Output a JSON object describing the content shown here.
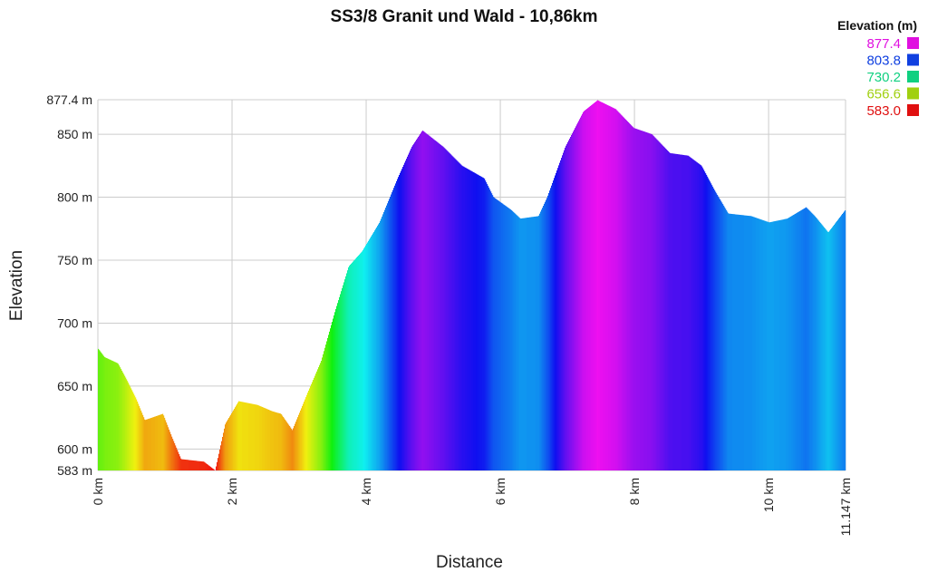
{
  "chart_data": {
    "type": "area",
    "title": "SS3/8 Granit und Wald - 10,86km",
    "xlabel": "Distance",
    "ylabel": "Elevation",
    "xlim": [
      0,
      11.147
    ],
    "ylim": [
      583,
      877.4
    ],
    "grid": true,
    "x_ticks": [
      {
        "v": 0,
        "label": "0 km"
      },
      {
        "v": 2,
        "label": "2 km"
      },
      {
        "v": 4,
        "label": "4 km"
      },
      {
        "v": 6,
        "label": "6 km"
      },
      {
        "v": 8,
        "label": "8 km"
      },
      {
        "v": 10,
        "label": "10 km"
      },
      {
        "v": 11.147,
        "label": "11.147 km"
      }
    ],
    "y_ticks": [
      {
        "v": 583,
        "label": "583 m"
      },
      {
        "v": 600,
        "label": "600 m"
      },
      {
        "v": 650,
        "label": "650 m"
      },
      {
        "v": 700,
        "label": "700 m"
      },
      {
        "v": 750,
        "label": "750 m"
      },
      {
        "v": 800,
        "label": "800 m"
      },
      {
        "v": 850,
        "label": "850 m"
      },
      {
        "v": 877.4,
        "label": "877.4 m"
      }
    ],
    "legend": {
      "title": "Elevation (m)",
      "placement": "top-right",
      "entries": [
        {
          "label": "877.4",
          "color": "#e010e0"
        },
        {
          "label": "803.8",
          "color": "#1040e0"
        },
        {
          "label": "730.2",
          "color": "#10d080"
        },
        {
          "label": "656.6",
          "color": "#a0d010"
        },
        {
          "label": "583.0",
          "color": "#e01010"
        }
      ]
    },
    "x": [
      0,
      0.1,
      0.3,
      0.43,
      0.57,
      0.7,
      0.97,
      1.1,
      1.24,
      1.58,
      1.75,
      1.9,
      2.1,
      2.38,
      2.6,
      2.73,
      2.9,
      3.13,
      3.33,
      3.54,
      3.74,
      3.94,
      4.2,
      4.47,
      4.68,
      4.84,
      5.15,
      5.43,
      5.76,
      5.9,
      6.16,
      6.3,
      6.57,
      6.7,
      6.97,
      7.24,
      7.45,
      7.72,
      7.99,
      8.26,
      8.53,
      8.8,
      9.0,
      9.2,
      9.4,
      9.74,
      10.01,
      10.28,
      10.56,
      10.69,
      10.89,
      11.147
    ],
    "y": [
      680,
      673,
      668,
      655,
      640,
      623,
      628,
      610,
      592,
      590,
      583,
      620,
      638,
      635,
      630,
      628,
      615,
      645,
      670,
      710,
      745,
      757,
      780,
      815,
      840,
      853,
      840,
      825,
      815,
      800,
      790,
      783,
      785,
      800,
      840,
      868,
      877,
      870,
      855,
      850,
      835,
      833,
      825,
      805,
      787,
      785,
      780,
      783,
      792,
      785,
      772,
      790
    ]
  }
}
